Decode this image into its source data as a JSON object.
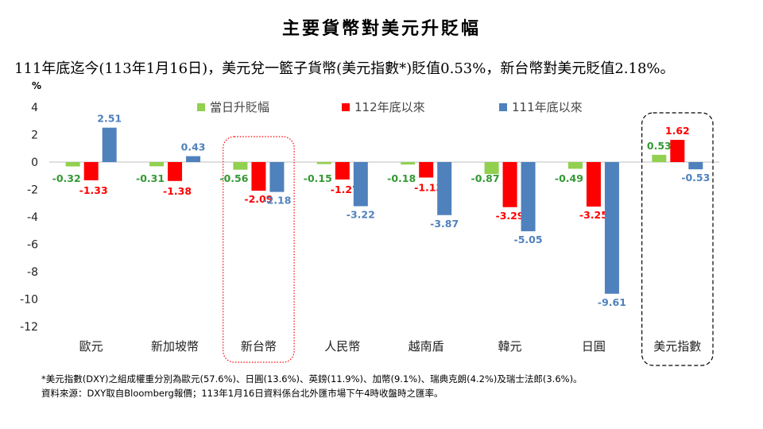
{
  "title": "主要貨幣對美元升貶幅",
  "subtitle": "111年底迄今(113年1月16日)，美元兌一籃子貨幣(美元指數*)貶值0.53%，新台幣對美元貶值2.18%。",
  "footnotes": [
    "*美元指數(DXY)之組成權重分別為歐元(57.6%)、日圓(13.6%)、英鎊(11.9%)、加幣(9.1%)、瑞典克朗(4.2%)及瑞士法郎(3.6%)。",
    "資料來源：DXY取自Bloomberg報價；113年1月16日資料係台北外匯市場下午4時收盤時之匯率。"
  ],
  "chart_data": {
    "type": "bar",
    "title": "主要貨幣對美元升貶幅",
    "ylabel": "%",
    "ylim": [
      -12,
      4
    ],
    "yticks": [
      4,
      2,
      0,
      -2,
      -4,
      -6,
      -8,
      -10,
      -12
    ],
    "grid": false,
    "legend_position": "top",
    "categories": [
      "歐元",
      "新加坡幣",
      "新台幣",
      "人民幣",
      "越南盾",
      "韓元",
      "日圓",
      "美元指數"
    ],
    "series": [
      {
        "name": "當日升貶幅",
        "color": "#92D050",
        "label_color": "#339933",
        "values": [
          -0.32,
          -0.31,
          -0.56,
          -0.15,
          -0.18,
          -0.87,
          -0.49,
          0.53
        ]
      },
      {
        "name": "112年底以來",
        "color": "#FF0000",
        "label_color": "#FF0000",
        "values": [
          -1.33,
          -1.38,
          -2.09,
          -1.27,
          -1.13,
          -3.29,
          -3.25,
          1.62
        ]
      },
      {
        "name": "111年底以來",
        "color": "#4F81BD",
        "label_color": "#4F81BD",
        "values": [
          2.51,
          0.43,
          -2.18,
          -3.22,
          -3.87,
          -5.05,
          -9.61,
          -0.53
        ]
      }
    ],
    "highlights": [
      {
        "category": "新台幣",
        "style": "dotted",
        "color": "#FF0000"
      },
      {
        "category": "美元指數",
        "style": "dashed",
        "color": "#000000"
      }
    ]
  }
}
